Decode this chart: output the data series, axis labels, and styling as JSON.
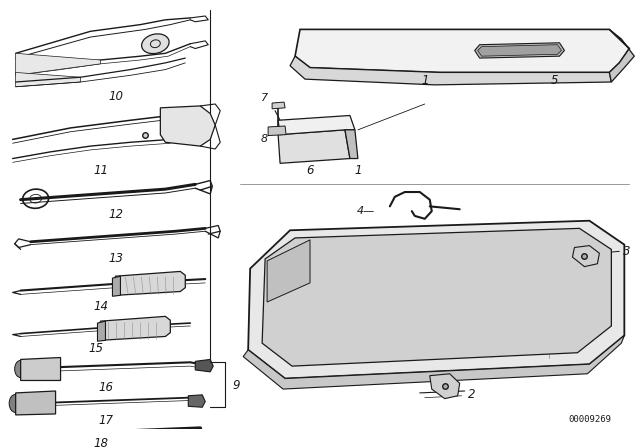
{
  "background_color": "#ffffff",
  "diagram_number": "00009269",
  "fig_width": 6.4,
  "fig_height": 4.48,
  "dpi": 100,
  "line_color": "#1a1a1a",
  "text_color": "#1a1a1a",
  "label_fontsize": 7.5,
  "number_fontsize": 6.5
}
